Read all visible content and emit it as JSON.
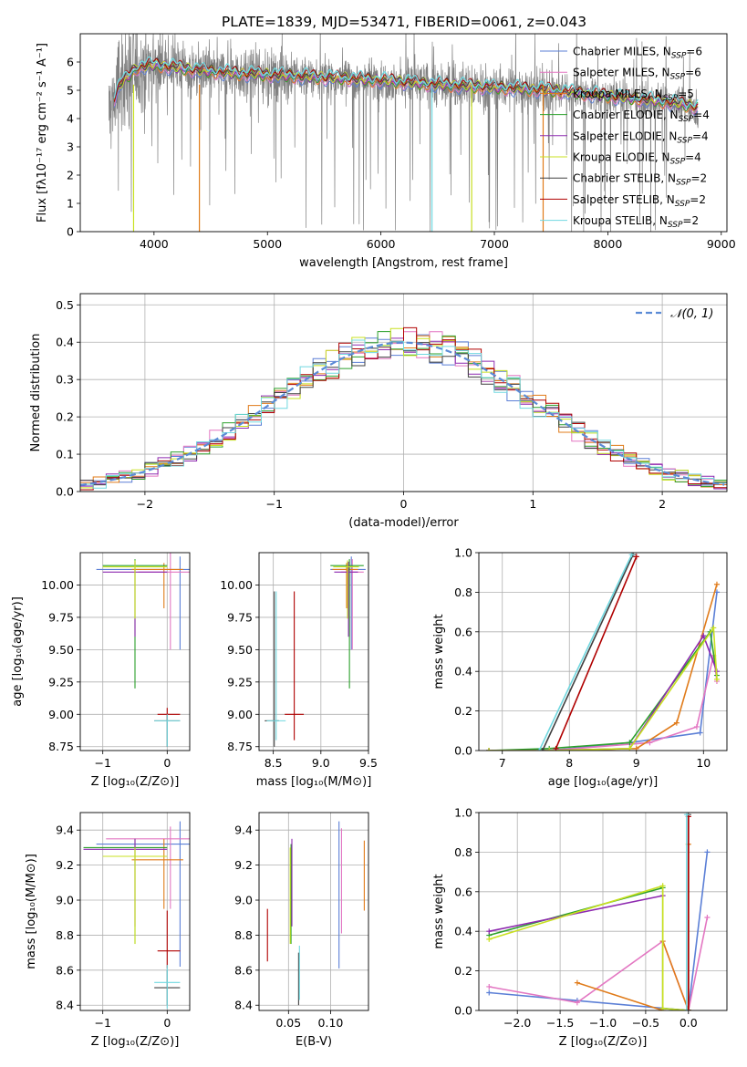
{
  "title": "PLATE=1839, MJD=53471, FIBERID=0061, z=0.043",
  "colors": {
    "chabrier_miles": "#5b7fd6",
    "salpeter_miles": "#e377c2",
    "kroupa_miles": "#e07b1a",
    "chabrier_elodie": "#2ca02c",
    "salpeter_elodie": "#8e2ab0",
    "kroupa_elodie": "#c8e020",
    "chabrier_stelib": "#404040",
    "salpeter_stelib": "#b00000",
    "kroupa_stelib": "#70d8e0",
    "data": "#808080",
    "gaussian": "#5b8bd6"
  },
  "legend_spectrum": [
    {
      "model": "Chabrier MILES",
      "nssp": "6",
      "color_key": "chabrier_miles"
    },
    {
      "model": "Salpeter MILES",
      "nssp": "6",
      "color_key": "salpeter_miles"
    },
    {
      "model": "Kroupa MILES",
      "nssp": "5",
      "color_key": "kroupa_miles"
    },
    {
      "model": "Chabrier ELODIE",
      "nssp": "4",
      "color_key": "chabrier_elodie"
    },
    {
      "model": "Salpeter ELODIE",
      "nssp": "4",
      "color_key": "salpeter_elodie"
    },
    {
      "model": "Kroupa ELODIE",
      "nssp": "4",
      "color_key": "kroupa_elodie"
    },
    {
      "model": "Chabrier STELIB",
      "nssp": "2",
      "color_key": "chabrier_stelib"
    },
    {
      "model": "Salpeter STELIB",
      "nssp": "2",
      "color_key": "salpeter_stelib"
    },
    {
      "model": "Kroupa STELIB",
      "nssp": "2",
      "color_key": "kroupa_stelib"
    }
  ],
  "nssp_prefix": "N",
  "nssp_sub": "SSP",
  "chart_data": [
    {
      "id": "spectrum",
      "type": "line",
      "xlabel": "wavelength [Angstrom, rest frame]",
      "ylabel": "Flux [fλ10⁻¹⁷ erg cm⁻² s⁻¹ A⁻¹]",
      "xlim": [
        3350,
        9050
      ],
      "ylim": [
        0,
        7.0
      ],
      "xticks": [
        4000,
        5000,
        6000,
        7000,
        8000,
        9000
      ],
      "yticks": [
        0,
        1,
        2,
        3,
        4,
        5,
        6
      ],
      "grid": false,
      "data_range": [
        3600,
        8800
      ],
      "model_profile": [
        [
          3600,
          4.2
        ],
        [
          3700,
          5.2
        ],
        [
          3850,
          5.8
        ],
        [
          4000,
          5.9
        ],
        [
          4200,
          5.8
        ],
        [
          4400,
          5.7
        ],
        [
          4700,
          5.6
        ],
        [
          5000,
          5.55
        ],
        [
          5500,
          5.45
        ],
        [
          6000,
          5.35
        ],
        [
          6500,
          5.2
        ],
        [
          7000,
          5.1
        ],
        [
          7500,
          5.0
        ],
        [
          8000,
          4.8
        ],
        [
          8500,
          4.6
        ],
        [
          8800,
          4.4
        ]
      ],
      "spikes": [
        {
          "x": 4400,
          "series": "kroupa_miles"
        },
        {
          "x": 6450,
          "series": "kroupa_stelib"
        },
        {
          "x": 6800,
          "series": "kroupa_elodie"
        },
        {
          "x": 7430,
          "series": "kroupa_miles"
        },
        {
          "x": 3820,
          "series": "kroupa_elodie"
        }
      ]
    },
    {
      "id": "residuals",
      "type": "histogram",
      "xlabel": "(data-model)/error",
      "ylabel": "Normed distribution",
      "xlim": [
        -2.5,
        2.5
      ],
      "ylim": [
        0,
        0.53
      ],
      "xticks": [
        -2,
        -1,
        0,
        1,
        2
      ],
      "yticks": [
        0.0,
        0.1,
        0.2,
        0.3,
        0.4,
        0.5
      ],
      "grid": true,
      "legend": "𝒩(0, 1)",
      "legend_position": "upper right",
      "bin_width": 0.1,
      "series": [
        {
          "name": "Chabrier MILES",
          "color_key": "chabrier_miles"
        },
        {
          "name": "Salpeter MILES",
          "color_key": "salpeter_miles"
        },
        {
          "name": "Kroupa MILES",
          "color_key": "kroupa_miles"
        },
        {
          "name": "Chabrier ELODIE",
          "color_key": "chabrier_elodie"
        },
        {
          "name": "Salpeter ELODIE",
          "color_key": "salpeter_elodie"
        },
        {
          "name": "Kroupa ELODIE",
          "color_key": "kroupa_elodie"
        },
        {
          "name": "Chabrier STELIB",
          "color_key": "chabrier_stelib"
        },
        {
          "name": "Salpeter STELIB",
          "color_key": "salpeter_stelib"
        },
        {
          "name": "Kroupa STELIB",
          "color_key": "kroupa_stelib"
        }
      ]
    },
    {
      "id": "age_vs_z",
      "type": "errorbar",
      "xlabel": "Z [log₁₀(Z/Z⊙)]",
      "ylabel": "age  [log₁₀(age/yr)]",
      "xlim": [
        -1.35,
        0.35
      ],
      "ylim": [
        8.72,
        10.25
      ],
      "xticks": [
        -1,
        0
      ],
      "yticks": [
        8.75,
        9.0,
        9.25,
        9.5,
        9.75,
        10.0
      ],
      "grid": true,
      "points": [
        {
          "c": "chabrier_miles",
          "x": 0.2,
          "y": 10.12,
          "xerr": [
            1.3,
            0.15
          ],
          "yerr": [
            0.62,
            0.1
          ]
        },
        {
          "c": "salpeter_miles",
          "x": 0.05,
          "y": 10.1,
          "xerr": [
            0.5,
            0.3
          ],
          "yerr": [
            0.6,
            0.15
          ]
        },
        {
          "c": "kroupa_miles",
          "x": -0.05,
          "y": 10.12,
          "xerr": [
            0.5,
            0.3
          ],
          "yerr": [
            0.3,
            0.05
          ]
        },
        {
          "c": "chabrier_elodie",
          "x": -0.5,
          "y": 10.15,
          "xerr": [
            0.5,
            0.5
          ],
          "yerr": [
            0.95,
            0.05
          ]
        },
        {
          "c": "salpeter_elodie",
          "x": -0.5,
          "y": 10.1,
          "xerr": [
            0.5,
            0.5
          ],
          "yerr": [
            0.5,
            0.08
          ]
        },
        {
          "c": "kroupa_elodie",
          "x": -0.5,
          "y": 10.14,
          "xerr": [
            0.5,
            0.5
          ],
          "yerr": [
            0.4,
            0.05
          ]
        },
        {
          "c": "chabrier_stelib",
          "x": 0.0,
          "y": 8.95,
          "xerr": [
            0.2,
            0.2
          ],
          "yerr": [
            0.2,
            0.05
          ]
        },
        {
          "c": "salpeter_stelib",
          "x": 0.0,
          "y": 9.0,
          "xerr": [
            0.15,
            0.2
          ],
          "yerr": [
            0.05,
            0.05
          ]
        },
        {
          "c": "kroupa_stelib",
          "x": 0.0,
          "y": 8.95,
          "xerr": [
            0.2,
            0.2
          ],
          "yerr": [
            0.2,
            0.05
          ]
        }
      ]
    },
    {
      "id": "age_vs_mass",
      "type": "errorbar",
      "xlabel": "mass [log₁₀(M/M⊙)]",
      "ylabel": "",
      "xlim": [
        8.35,
        9.5
      ],
      "ylim": [
        8.72,
        10.25
      ],
      "xticks": [
        8.5,
        9.0,
        9.5
      ],
      "yticks": [
        8.75,
        9.0,
        9.25,
        9.5,
        9.75,
        10.0
      ],
      "grid": true,
      "points": [
        {
          "c": "chabrier_miles",
          "x": 9.32,
          "y": 10.12,
          "xerr": [
            0.22,
            0.15
          ],
          "yerr": [
            0.62,
            0.1
          ]
        },
        {
          "c": "salpeter_miles",
          "x": 9.33,
          "y": 10.1,
          "xerr": [
            0.12,
            0.12
          ],
          "yerr": [
            0.6,
            0.1
          ]
        },
        {
          "c": "kroupa_miles",
          "x": 9.27,
          "y": 10.12,
          "xerr": [
            0.15,
            0.12
          ],
          "yerr": [
            0.3,
            0.05
          ]
        },
        {
          "c": "chabrier_elodie",
          "x": 9.3,
          "y": 10.15,
          "xerr": [
            0.2,
            0.15
          ],
          "yerr": [
            0.95,
            0.05
          ]
        },
        {
          "c": "salpeter_elodie",
          "x": 9.29,
          "y": 10.1,
          "xerr": [
            0.15,
            0.1
          ],
          "yerr": [
            0.5,
            0.08
          ]
        },
        {
          "c": "kroupa_elodie",
          "x": 9.28,
          "y": 10.14,
          "xerr": [
            0.15,
            0.12
          ],
          "yerr": [
            0.4,
            0.05
          ]
        },
        {
          "c": "chabrier_stelib",
          "x": 8.51,
          "y": 8.95,
          "xerr": [
            0.1,
            0.05
          ],
          "yerr": [
            0.2,
            1.0
          ]
        },
        {
          "c": "salpeter_stelib",
          "x": 8.72,
          "y": 9.0,
          "xerr": [
            0.1,
            0.1
          ],
          "yerr": [
            0.2,
            0.95
          ]
        },
        {
          "c": "kroupa_stelib",
          "x": 8.53,
          "y": 8.95,
          "xerr": [
            0.1,
            0.1
          ],
          "yerr": [
            0.15,
            1.0
          ]
        }
      ]
    },
    {
      "id": "mass_weight_vs_age",
      "type": "line",
      "xlabel": "age  [log₁₀(age/yr)]",
      "ylabel": "mass weight",
      "xlim": [
        6.65,
        10.35
      ],
      "ylim": [
        0,
        1.0
      ],
      "xticks": [
        7,
        8,
        9,
        10
      ],
      "yticks": [
        0.0,
        0.2,
        0.4,
        0.6,
        0.8,
        1.0
      ],
      "grid": true,
      "series": [
        {
          "c": "chabrier_miles",
          "x": [
            6.8,
            7.7,
            8.9,
            9.95,
            10.2
          ],
          "y": [
            0.0,
            0.0,
            0.04,
            0.09,
            0.8
          ]
        },
        {
          "c": "salpeter_miles",
          "x": [
            6.8,
            7.7,
            9.2,
            9.9,
            10.15,
            10.2
          ],
          "y": [
            0.0,
            0.0,
            0.04,
            0.12,
            0.48,
            0.35
          ]
        },
        {
          "c": "kroupa_miles",
          "x": [
            6.8,
            7.7,
            9.0,
            9.6,
            10.2
          ],
          "y": [
            0.0,
            0.0,
            0.01,
            0.14,
            0.84
          ]
        },
        {
          "c": "chabrier_elodie",
          "x": [
            6.8,
            7.7,
            8.9,
            10.1,
            10.2
          ],
          "y": [
            0.0,
            0.01,
            0.04,
            0.6,
            0.38
          ]
        },
        {
          "c": "salpeter_elodie",
          "x": [
            6.8,
            7.7,
            8.9,
            10.0,
            10.2
          ],
          "y": [
            0.0,
            0.0,
            0.01,
            0.58,
            0.4
          ]
        },
        {
          "c": "kroupa_elodie",
          "x": [
            6.8,
            7.7,
            8.9,
            10.15,
            10.2
          ],
          "y": [
            0.0,
            0.0,
            0.01,
            0.62,
            0.36
          ]
        },
        {
          "c": "chabrier_stelib",
          "x": [
            7.6,
            8.95
          ],
          "y": [
            0.0,
            0.99
          ]
        },
        {
          "c": "salpeter_stelib",
          "x": [
            7.8,
            9.0
          ],
          "y": [
            0.01,
            0.98
          ]
        },
        {
          "c": "kroupa_stelib",
          "x": [
            7.55,
            8.93
          ],
          "y": [
            0.0,
            0.99
          ]
        }
      ]
    },
    {
      "id": "mass_vs_z",
      "type": "errorbar",
      "xlabel": "Z [log₁₀(Z/Z⊙)]",
      "ylabel": "mass [log₁₀(M/M⊙)]",
      "xlim": [
        -1.35,
        0.35
      ],
      "ylim": [
        8.37,
        9.5
      ],
      "xticks": [
        -1,
        0
      ],
      "yticks": [
        8.4,
        8.6,
        8.8,
        9.0,
        9.2,
        9.4
      ],
      "grid": true,
      "points": [
        {
          "c": "chabrier_miles",
          "x": 0.2,
          "y": 9.32,
          "xerr": [
            1.3,
            0.15
          ],
          "yerr": [
            0.7,
            0.13
          ]
        },
        {
          "c": "salpeter_miles",
          "x": 0.05,
          "y": 9.35,
          "xerr": [
            1.0,
            0.3
          ],
          "yerr": [
            0.4,
            0.07
          ]
        },
        {
          "c": "kroupa_miles",
          "x": -0.05,
          "y": 9.23,
          "xerr": [
            0.5,
            0.3
          ],
          "yerr": [
            0.28,
            0.12
          ]
        },
        {
          "c": "chabrier_elodie",
          "x": -0.5,
          "y": 9.3,
          "xerr": [
            0.8,
            0.5
          ],
          "yerr": [
            0.55,
            0.05
          ]
        },
        {
          "c": "salpeter_elodie",
          "x": -0.5,
          "y": 9.29,
          "xerr": [
            0.8,
            0.5
          ],
          "yerr": [
            0.44,
            0.06
          ]
        },
        {
          "c": "kroupa_elodie",
          "x": -0.5,
          "y": 9.25,
          "xerr": [
            0.5,
            0.5
          ],
          "yerr": [
            0.5,
            0.05
          ]
        },
        {
          "c": "chabrier_stelib",
          "x": 0.0,
          "y": 8.5,
          "xerr": [
            0.2,
            0.2
          ],
          "yerr": [
            0.1,
            0.1
          ]
        },
        {
          "c": "salpeter_stelib",
          "x": 0.0,
          "y": 8.71,
          "xerr": [
            0.15,
            0.2
          ],
          "yerr": [
            0.1,
            0.23
          ]
        },
        {
          "c": "kroupa_stelib",
          "x": 0.0,
          "y": 8.53,
          "xerr": [
            0.2,
            0.2
          ],
          "yerr": [
            0.15,
            0.1
          ]
        }
      ]
    },
    {
      "id": "mass_vs_ebv",
      "type": "errorbar",
      "xlabel": "E(B-V)",
      "ylabel": "",
      "xlim": [
        0.015,
        0.145
      ],
      "ylim": [
        8.37,
        9.5
      ],
      "xticks": [
        0.05,
        0.1
      ],
      "yticks": [
        8.4,
        8.6,
        8.8,
        9.0,
        9.2,
        9.4
      ],
      "grid": true,
      "points": [
        {
          "c": "chabrier_miles",
          "x": 0.11,
          "y": 9.03,
          "xerr": [
            0,
            0
          ],
          "yerr": [
            0.42,
            0.42
          ]
        },
        {
          "c": "salpeter_miles",
          "x": 0.113,
          "y": 9.11,
          "xerr": [
            0,
            0
          ],
          "yerr": [
            0.3,
            0.3
          ]
        },
        {
          "c": "kroupa_miles",
          "x": 0.14,
          "y": 9.14,
          "xerr": [
            0,
            0
          ],
          "yerr": [
            0.2,
            0.2
          ]
        },
        {
          "c": "chabrier_elodie",
          "x": 0.053,
          "y": 9.1,
          "xerr": [
            0,
            0
          ],
          "yerr": [
            0.35,
            0.22
          ]
        },
        {
          "c": "salpeter_elodie",
          "x": 0.054,
          "y": 9.1,
          "xerr": [
            0,
            0
          ],
          "yerr": [
            0.25,
            0.25
          ]
        },
        {
          "c": "kroupa_elodie",
          "x": 0.052,
          "y": 9.05,
          "xerr": [
            0,
            0
          ],
          "yerr": [
            0.3,
            0.25
          ]
        },
        {
          "c": "chabrier_stelib",
          "x": 0.062,
          "y": 8.55,
          "xerr": [
            0,
            0
          ],
          "yerr": [
            0.15,
            0.15
          ]
        },
        {
          "c": "salpeter_stelib",
          "x": 0.025,
          "y": 8.8,
          "xerr": [
            0,
            0
          ],
          "yerr": [
            0.15,
            0.15
          ]
        },
        {
          "c": "kroupa_stelib",
          "x": 0.063,
          "y": 8.58,
          "xerr": [
            0,
            0
          ],
          "yerr": [
            0.15,
            0.16
          ]
        }
      ]
    },
    {
      "id": "mass_weight_vs_z",
      "type": "line",
      "xlabel": "Z [log₁₀(Z/Z⊙)]",
      "ylabel": "mass weight",
      "xlim": [
        -2.45,
        0.45
      ],
      "ylim": [
        0,
        1.0
      ],
      "xticks": [
        -2.0,
        -1.5,
        -1.0,
        -0.5,
        0.0
      ],
      "yticks": [
        0.0,
        0.2,
        0.4,
        0.6,
        0.8,
        1.0
      ],
      "grid": true,
      "series": [
        {
          "c": "chabrier_miles",
          "x": [
            -2.33,
            -1.3,
            0.0,
            0.22
          ],
          "y": [
            0.09,
            0.05,
            0.0,
            0.8
          ]
        },
        {
          "c": "salpeter_miles",
          "x": [
            -2.33,
            -1.3,
            -0.3,
            0.0,
            0.22
          ],
          "y": [
            0.12,
            0.04,
            0.35,
            0.0,
            0.47
          ]
        },
        {
          "c": "kroupa_miles",
          "x": [
            -1.3,
            -0.3,
            -0.3,
            0.0,
            0.0
          ],
          "y": [
            0.14,
            0.0,
            0.35,
            0.0,
            0.84
          ]
        },
        {
          "c": "chabrier_elodie",
          "x": [
            -2.33,
            -0.3,
            -0.3,
            0.0
          ],
          "y": [
            0.38,
            0.62,
            0.01,
            0.0
          ]
        },
        {
          "c": "salpeter_elodie",
          "x": [
            -2.33,
            -0.3
          ],
          "y": [
            0.4,
            0.58
          ]
        },
        {
          "c": "kroupa_elodie",
          "x": [
            -2.33,
            -0.3,
            -0.3,
            0.0
          ],
          "y": [
            0.36,
            0.63,
            0.01,
            0.0
          ]
        },
        {
          "c": "chabrier_stelib",
          "x": [
            0.0,
            0.0
          ],
          "y": [
            0.0,
            0.99
          ]
        },
        {
          "c": "salpeter_stelib",
          "x": [
            0.0,
            0.0
          ],
          "y": [
            0.0,
            0.98
          ]
        },
        {
          "c": "kroupa_stelib",
          "x": [
            -0.02,
            -0.02
          ],
          "y": [
            0.0,
            0.99
          ]
        }
      ]
    }
  ]
}
